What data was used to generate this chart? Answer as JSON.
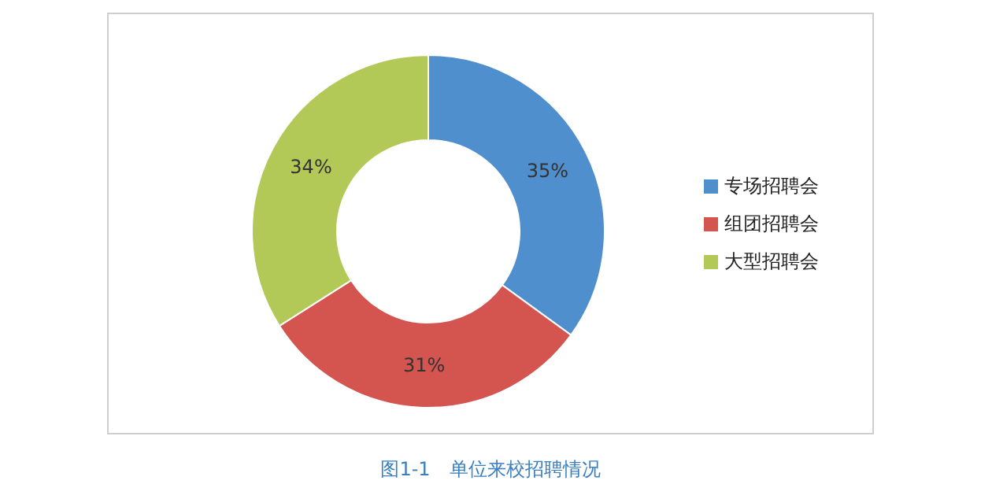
{
  "chart_data": {
    "type": "donut",
    "title": "图1-1　单位来校招聘情况",
    "categories": [
      "专场招聘会",
      "组团招聘会",
      "大型招聘会"
    ],
    "values": [
      35,
      31,
      34
    ],
    "colors": [
      "#4f8fce",
      "#d45450",
      "#b3c957"
    ],
    "value_labels": [
      "35%",
      "31%",
      "34%"
    ],
    "legend": "right"
  }
}
